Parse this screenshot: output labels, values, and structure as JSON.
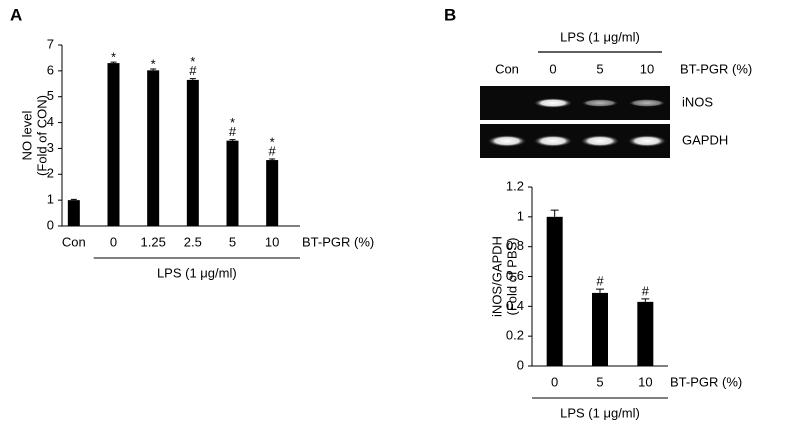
{
  "panel_labels": [
    "A",
    "B"
  ],
  "chart_data": [
    {
      "type": "bar",
      "ylabel": [
        "NO level",
        "(Fold of CON)"
      ],
      "categories": [
        "Con",
        "0",
        "1.25",
        "2.5",
        "5",
        "10"
      ],
      "values": [
        1.0,
        6.3,
        6.02,
        5.65,
        3.3,
        2.55
      ],
      "errors": [
        0.03,
        0.04,
        0.05,
        0.05,
        0.04,
        0.04
      ],
      "significance": [
        [],
        [
          "*"
        ],
        [
          "*"
        ],
        [
          "*",
          "#"
        ],
        [
          "*",
          "#"
        ],
        [
          "*",
          "#"
        ]
      ],
      "color": "#000000",
      "ylim": [
        0,
        7
      ],
      "yticks": [
        0,
        1,
        2,
        3,
        4,
        5,
        6,
        7
      ],
      "xlabel": "BT-PGR (%)",
      "group_label": "LPS (1 μg/ml)",
      "group_from": 1
    },
    {
      "type": "bar",
      "ylabel": [
        "iNOS/GAPDH",
        "(Fold of PBS)"
      ],
      "categories": [
        "0",
        "5",
        "10"
      ],
      "values": [
        1.0,
        0.49,
        0.43
      ],
      "errors": [
        0.045,
        0.025,
        0.02
      ],
      "significance": [
        [],
        [
          "#"
        ],
        [
          "#"
        ]
      ],
      "color": "#000000",
      "ylim": [
        0,
        1.2
      ],
      "yticks": [
        0,
        0.2,
        0.4,
        0.6,
        0.8,
        1,
        1.2
      ],
      "xlabel": "BT-PGR (%)",
      "group_label": "LPS (1 μg/ml)",
      "group_from": 0
    }
  ],
  "gel": {
    "header": "LPS (1 μg/ml)",
    "lanes": [
      "Con",
      "0",
      "5",
      "10"
    ],
    "condition": "BT-PGR (%)",
    "rows": [
      "iNOS",
      "GAPDH"
    ]
  }
}
